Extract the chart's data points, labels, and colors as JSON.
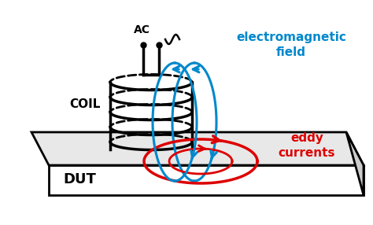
{
  "bg_color": "#ffffff",
  "coil_color": "#000000",
  "em_field_color": "#0088cc",
  "eddy_color": "#dd0000",
  "label_coil": "COIL",
  "label_ac": "AC",
  "label_em": "electromagnetic\nfield",
  "label_eddy": "eddy\ncurrents",
  "label_dut": "DUT",
  "plate_top_color": "#e8e8e8",
  "plate_front_color": "#ffffff",
  "plate_right_color": "#cccccc",
  "figsize": [
    4.74,
    2.86
  ],
  "dpi": 100
}
